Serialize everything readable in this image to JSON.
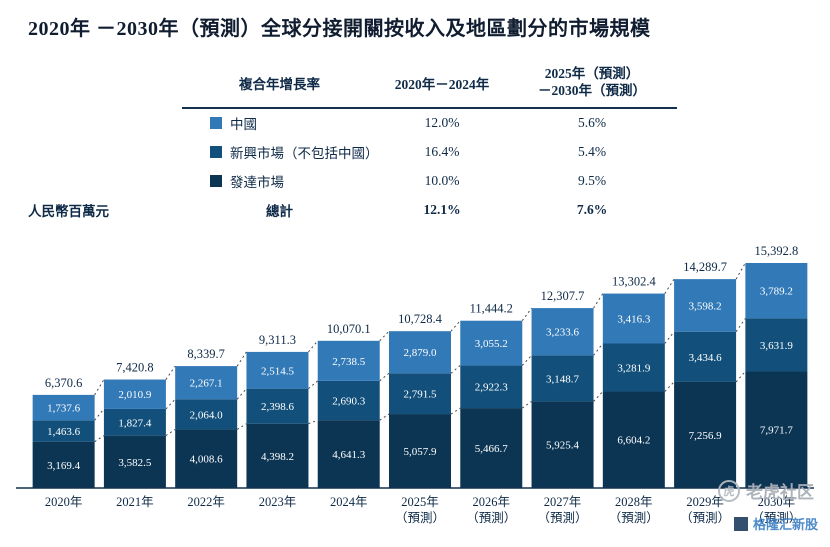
{
  "title": "2020年 －2030年（預測）全球分接開關按收入及地區劃分的市場規模",
  "y_axis_unit": "人民幣百萬元",
  "colors": {
    "china": "#3279B7",
    "emerging": "#12507B",
    "developed": "#0C3554",
    "text": "#0e2a47",
    "axis": "#13304f"
  },
  "cagr_table": {
    "header_col1": "複合年增長率",
    "header_period1": "2020年－2024年",
    "header_period2_line1": "2025年（預測）",
    "header_period2_line2": "－2030年（預測）",
    "rows": [
      {
        "label": "中國",
        "p1": "12.0%",
        "p2": "5.6%",
        "color_key": "china"
      },
      {
        "label": "新興市場（不包括中國）",
        "p1": "16.4%",
        "p2": "5.4%",
        "color_key": "emerging"
      },
      {
        "label": "發達市場",
        "p1": "10.0%",
        "p2": "9.5%",
        "color_key": "developed"
      }
    ],
    "total_row": {
      "label": "總計",
      "p1": "12.1%",
      "p2": "7.6%"
    }
  },
  "chart_data": {
    "type": "bar",
    "stacked": true,
    "title": "2020年 －2030年（預測）全球分接開關按收入及地區劃分的市場規模",
    "ylabel": "人民幣百萬元",
    "grid": false,
    "legend_position": "table-top",
    "categories": [
      "2020年",
      "2021年",
      "2022年",
      "2023年",
      "2024年",
      "2025年",
      "2026年",
      "2027年",
      "2028年",
      "2029年",
      "2030年"
    ],
    "forecast_from_index": 5,
    "forecast_suffix": "（預測）",
    "series": [
      {
        "name": "發達市場",
        "color": "#0C3554",
        "values": [
          3169.4,
          3582.5,
          4008.6,
          4398.2,
          4641.3,
          5057.9,
          5466.7,
          5925.4,
          6604.2,
          7256.9,
          7971.7
        ]
      },
      {
        "name": "新興市場（不包括中國）",
        "color": "#12507B",
        "values": [
          1463.6,
          1827.4,
          2064.0,
          2398.6,
          2690.3,
          2791.5,
          2922.3,
          3148.7,
          3281.9,
          3434.6,
          3631.9
        ]
      },
      {
        "name": "中國",
        "color": "#3279B7",
        "values": [
          1737.6,
          2010.9,
          2267.1,
          2514.5,
          2738.5,
          2879.0,
          3055.2,
          3233.6,
          3416.3,
          3598.2,
          3789.2
        ]
      }
    ],
    "totals": [
      6370.6,
      7420.8,
      8339.7,
      9311.3,
      10070.1,
      10728.4,
      11444.2,
      12307.7,
      13302.4,
      14289.7,
      15392.8
    ]
  },
  "watermarks": {
    "primary": "老虎社区",
    "primary_logo_glyph": "虎",
    "secondary": "格隆汇新股"
  }
}
